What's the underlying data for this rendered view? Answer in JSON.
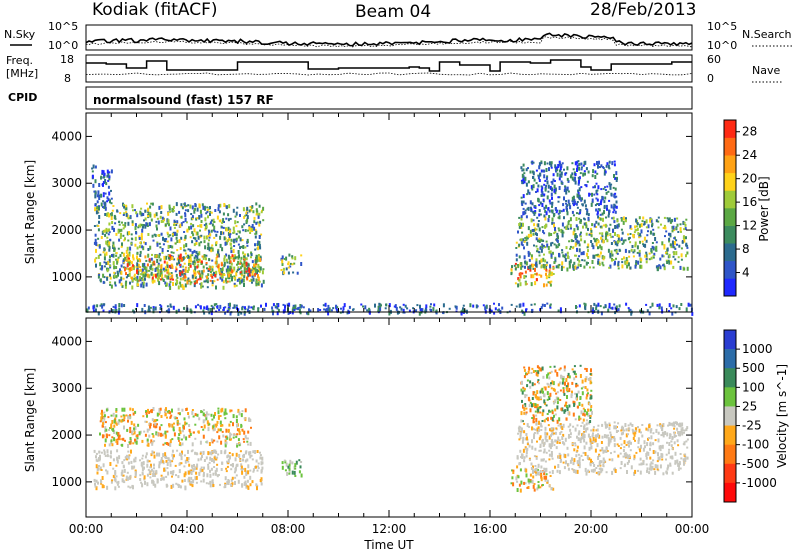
{
  "header": {
    "station": "Kodiak (fitACF)",
    "beam": "Beam 04",
    "date": "28/Feb/2013"
  },
  "ancillary": {
    "nsky_label": "N.Sky",
    "nsearch_label": "N.Search",
    "freq_label_1": "Freq.",
    "freq_label_2": "[MHz]",
    "nave_label": "Nave",
    "cpid_label": "CPID",
    "noise_ticks": [
      "10^5",
      "10^0"
    ],
    "freq_ticks": [
      "18",
      "8"
    ],
    "nave_ticks": [
      "60",
      "0"
    ],
    "cpid_text": "normalsound (fast) 157 RF"
  },
  "chart_data": [
    {
      "type": "heatmap",
      "panel": "power",
      "ylabel": "Slant Range [km]",
      "yticks": [
        "1000",
        "2000",
        "3000",
        "4000"
      ],
      "ylim": [
        250,
        4500
      ],
      "xlim_hours": [
        0,
        24
      ],
      "colorbar": {
        "label": "Power [dB]",
        "ticks": [
          "4",
          "8",
          "12",
          "16",
          "20",
          "24",
          "28"
        ],
        "range": [
          0,
          30
        ],
        "colors": [
          "#1f29ff",
          "#2f55c8",
          "#2c6b8e",
          "#3c8b5e",
          "#5ba844",
          "#9fcb3a",
          "#ffd21a",
          "#ffa215",
          "#ff6a14",
          "#ff2a14"
        ]
      },
      "scatter_regions": [
        {
          "x": [
            0.3,
            7.0
          ],
          "r": [
            800,
            2600
          ],
          "level": "mid"
        },
        {
          "x": [
            1.5,
            7.0
          ],
          "r": [
            900,
            1500
          ],
          "level": "high"
        },
        {
          "x": [
            0.2,
            1.0
          ],
          "r": [
            2500,
            3400
          ],
          "level": "low"
        },
        {
          "x": [
            7.7,
            8.5
          ],
          "r": [
            1100,
            1500
          ],
          "level": "mid"
        },
        {
          "x": [
            16.8,
            18.5
          ],
          "r": [
            850,
            1300
          ],
          "level": "high"
        },
        {
          "x": [
            17.0,
            23.8
          ],
          "r": [
            1200,
            2300
          ],
          "level": "mid"
        },
        {
          "x": [
            17.2,
            21.0
          ],
          "r": [
            2300,
            3500
          ],
          "level": "low"
        },
        {
          "x": [
            0.0,
            24.0
          ],
          "r": [
            250,
            450
          ],
          "level": "low"
        }
      ]
    },
    {
      "type": "heatmap",
      "panel": "velocity",
      "ylabel": "Slant Range [km]",
      "yticks": [
        "1000",
        "2000",
        "3000",
        "4000"
      ],
      "ylim": [
        250,
        4500
      ],
      "xlim_hours": [
        0,
        24
      ],
      "xlabel": "Time UT",
      "xticks": [
        "00:00",
        "04:00",
        "08:00",
        "12:00",
        "16:00",
        "20:00",
        "00:00"
      ],
      "colorbar": {
        "label": "Velocity [m s^-1]",
        "ticks": [
          "1000",
          "500",
          "100",
          "25",
          "-25",
          "-100",
          "-500",
          "-1000"
        ],
        "colors": [
          "#2a3dd1",
          "#2c6ca8",
          "#3a8a5a",
          "#6cc33e",
          "#c8c8c0",
          "#ffa81a",
          "#ff7a14",
          "#ff3a14",
          "#ff0a0a"
        ]
      },
      "scatter_regions": [
        {
          "x": [
            0.3,
            7.0
          ],
          "r": [
            900,
            1700
          ],
          "level": "ground"
        },
        {
          "x": [
            0.5,
            6.5
          ],
          "r": [
            1800,
            2600
          ],
          "level": "orange"
        },
        {
          "x": [
            7.7,
            8.5
          ],
          "r": [
            1100,
            1500
          ],
          "level": "green"
        },
        {
          "x": [
            16.8,
            18.5
          ],
          "r": [
            850,
            1300
          ],
          "level": "orange"
        },
        {
          "x": [
            17.0,
            23.8
          ],
          "r": [
            1200,
            2300
          ],
          "level": "ground"
        },
        {
          "x": [
            17.2,
            20.0
          ],
          "r": [
            2300,
            3500
          ],
          "level": "mixed"
        }
      ]
    }
  ]
}
